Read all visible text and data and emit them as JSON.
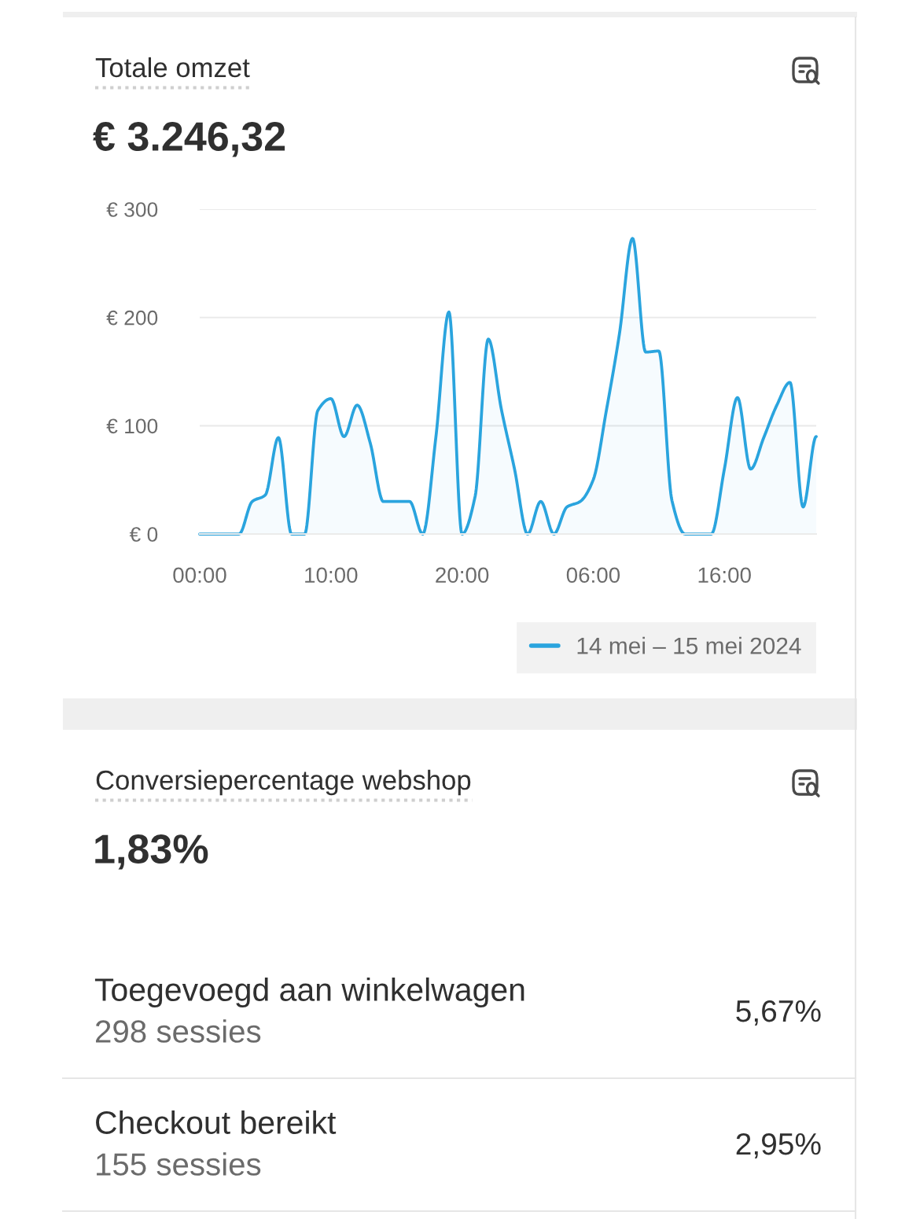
{
  "chart_data": [
    {
      "type": "area",
      "title": "Totale omzet",
      "subtitle": "€ 3.246,32",
      "x": [
        "2024-05-14T00:00",
        "2024-05-14T01:00",
        "2024-05-14T02:00",
        "2024-05-14T03:00",
        "2024-05-14T04:00",
        "2024-05-14T05:00",
        "2024-05-14T06:00",
        "2024-05-14T07:00",
        "2024-05-14T08:00",
        "2024-05-14T09:00",
        "2024-05-14T10:00",
        "2024-05-14T11:00",
        "2024-05-14T12:00",
        "2024-05-14T13:00",
        "2024-05-14T14:00",
        "2024-05-14T15:00",
        "2024-05-14T16:00",
        "2024-05-14T17:00",
        "2024-05-14T18:00",
        "2024-05-14T19:00",
        "2024-05-14T20:00",
        "2024-05-14T21:00",
        "2024-05-14T22:00",
        "2024-05-14T23:00",
        "2024-05-15T00:00",
        "2024-05-15T01:00",
        "2024-05-15T02:00",
        "2024-05-15T03:00",
        "2024-05-15T04:00",
        "2024-05-15T05:00",
        "2024-05-15T06:00",
        "2024-05-15T07:00",
        "2024-05-15T08:00",
        "2024-05-15T09:00",
        "2024-05-15T10:00",
        "2024-05-15T11:00",
        "2024-05-15T12:00",
        "2024-05-15T13:00",
        "2024-05-15T14:00",
        "2024-05-15T15:00",
        "2024-05-15T16:00",
        "2024-05-15T17:00",
        "2024-05-15T18:00",
        "2024-05-15T19:00",
        "2024-05-15T20:00",
        "2024-05-15T21:00",
        "2024-05-15T22:00",
        "2024-05-15T23:00"
      ],
      "series": [
        {
          "name": "14 mei – 15 mei 2024",
          "color": "#2aa4de",
          "values": [
            0,
            0,
            0,
            0,
            30,
            36,
            89,
            0,
            0,
            114,
            125,
            90,
            119,
            84,
            30,
            30,
            30,
            0,
            89,
            205,
            0,
            35,
            180,
            115,
            60,
            0,
            30,
            0,
            25,
            30,
            50,
            114,
            185,
            273,
            168,
            169,
            31,
            0,
            0,
            0,
            60,
            126,
            60,
            89,
            119,
            140,
            25,
            90
          ]
        }
      ],
      "xlim": [
        "2024-05-14T00:00",
        "2024-05-15T23:00"
      ],
      "xticks": [
        {
          "value": "2024-05-14T00:00",
          "label": "00:00"
        },
        {
          "value": "2024-05-14T10:00",
          "label": "10:00"
        },
        {
          "value": "2024-05-14T20:00",
          "label": "20:00"
        },
        {
          "value": "2024-05-15T06:00",
          "label": "06:00"
        },
        {
          "value": "2024-05-15T16:00",
          "label": "16:00"
        }
      ],
      "ylim": [
        0,
        300
      ],
      "yticks": [
        {
          "value": 0,
          "label": "€ 0"
        },
        {
          "value": 100,
          "label": "€ 100"
        },
        {
          "value": 200,
          "label": "€ 200"
        },
        {
          "value": 300,
          "label": "€ 300"
        }
      ],
      "grid": "y",
      "legend": "bottom right"
    },
    {
      "type": "other",
      "title": "Conversiepercentage webshop",
      "subtitle": "1,83%",
      "annotations": [
        "Toegevoegd aan winkelwagen",
        "298 sessies",
        "5,67%",
        "Checkout bereikt",
        "155 sessies",
        "2,95%"
      ]
    }
  ]
}
